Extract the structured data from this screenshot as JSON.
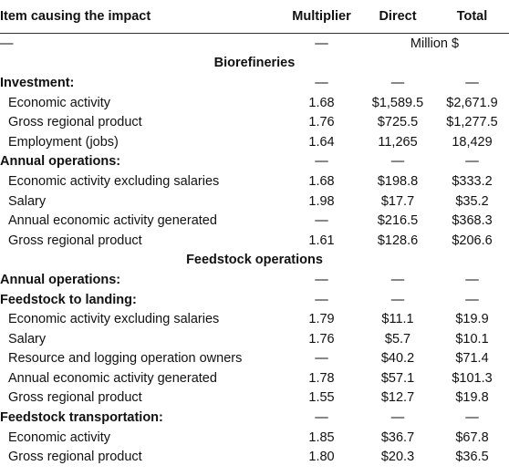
{
  "table": {
    "header": [
      "Item causing the impact",
      "Multiplier",
      "Direct",
      "Total"
    ],
    "units": [
      "—",
      "—",
      "Million $"
    ],
    "sections": [
      {
        "title": "Biorefineries",
        "groups": [
          {
            "heading": [
              "Investment:",
              "—",
              "—",
              "—"
            ],
            "rows": [
              [
                "Economic activity",
                "1.68",
                "$1,589.5",
                "$2,671.9"
              ],
              [
                "Gross regional product",
                "1.76",
                "$725.5",
                "$1,277.5"
              ],
              [
                "Employment (jobs)",
                "1.64",
                "11,265",
                "18,429"
              ]
            ]
          },
          {
            "heading": [
              "Annual operations:",
              "—",
              "—",
              "—"
            ],
            "rows": [
              [
                "Economic activity excluding salaries",
                "1.68",
                "$198.8",
                "$333.2"
              ],
              [
                "Salary",
                "1.98",
                "$17.7",
                "$35.2"
              ],
              [
                "Annual economic activity generated",
                "—",
                "$216.5",
                "$368.3"
              ],
              [
                "Gross regional product",
                "1.61",
                "$128.6",
                "$206.6"
              ]
            ]
          }
        ]
      },
      {
        "title": "Feedstock operations",
        "groups": [
          {
            "heading": [
              "Annual operations:",
              "—",
              "—",
              "—"
            ],
            "rows": []
          },
          {
            "heading": [
              "Feedstock to landing:",
              "—",
              "—",
              "—"
            ],
            "rows": [
              [
                "Economic activity excluding salaries",
                "1.79",
                "$11.1",
                "$19.9"
              ],
              [
                "Salary",
                "1.76",
                "$5.7",
                "$10.1"
              ],
              [
                "Resource and logging operation owners",
                "—",
                "$40.2",
                "$71.4"
              ],
              [
                "Annual economic activity generated",
                "1.78",
                "$57.1",
                "$101.3"
              ],
              [
                "Gross regional product",
                "1.55",
                "$12.7",
                "$19.8"
              ]
            ]
          },
          {
            "heading": [
              "Feedstock transportation:",
              "—",
              "—",
              "—"
            ],
            "rows": [
              [
                "Economic activity",
                "1.85",
                "$36.7",
                "$67.8"
              ],
              [
                "Gross regional product",
                "1.80",
                "$20.3",
                "$36.5"
              ]
            ]
          }
        ]
      }
    ]
  }
}
